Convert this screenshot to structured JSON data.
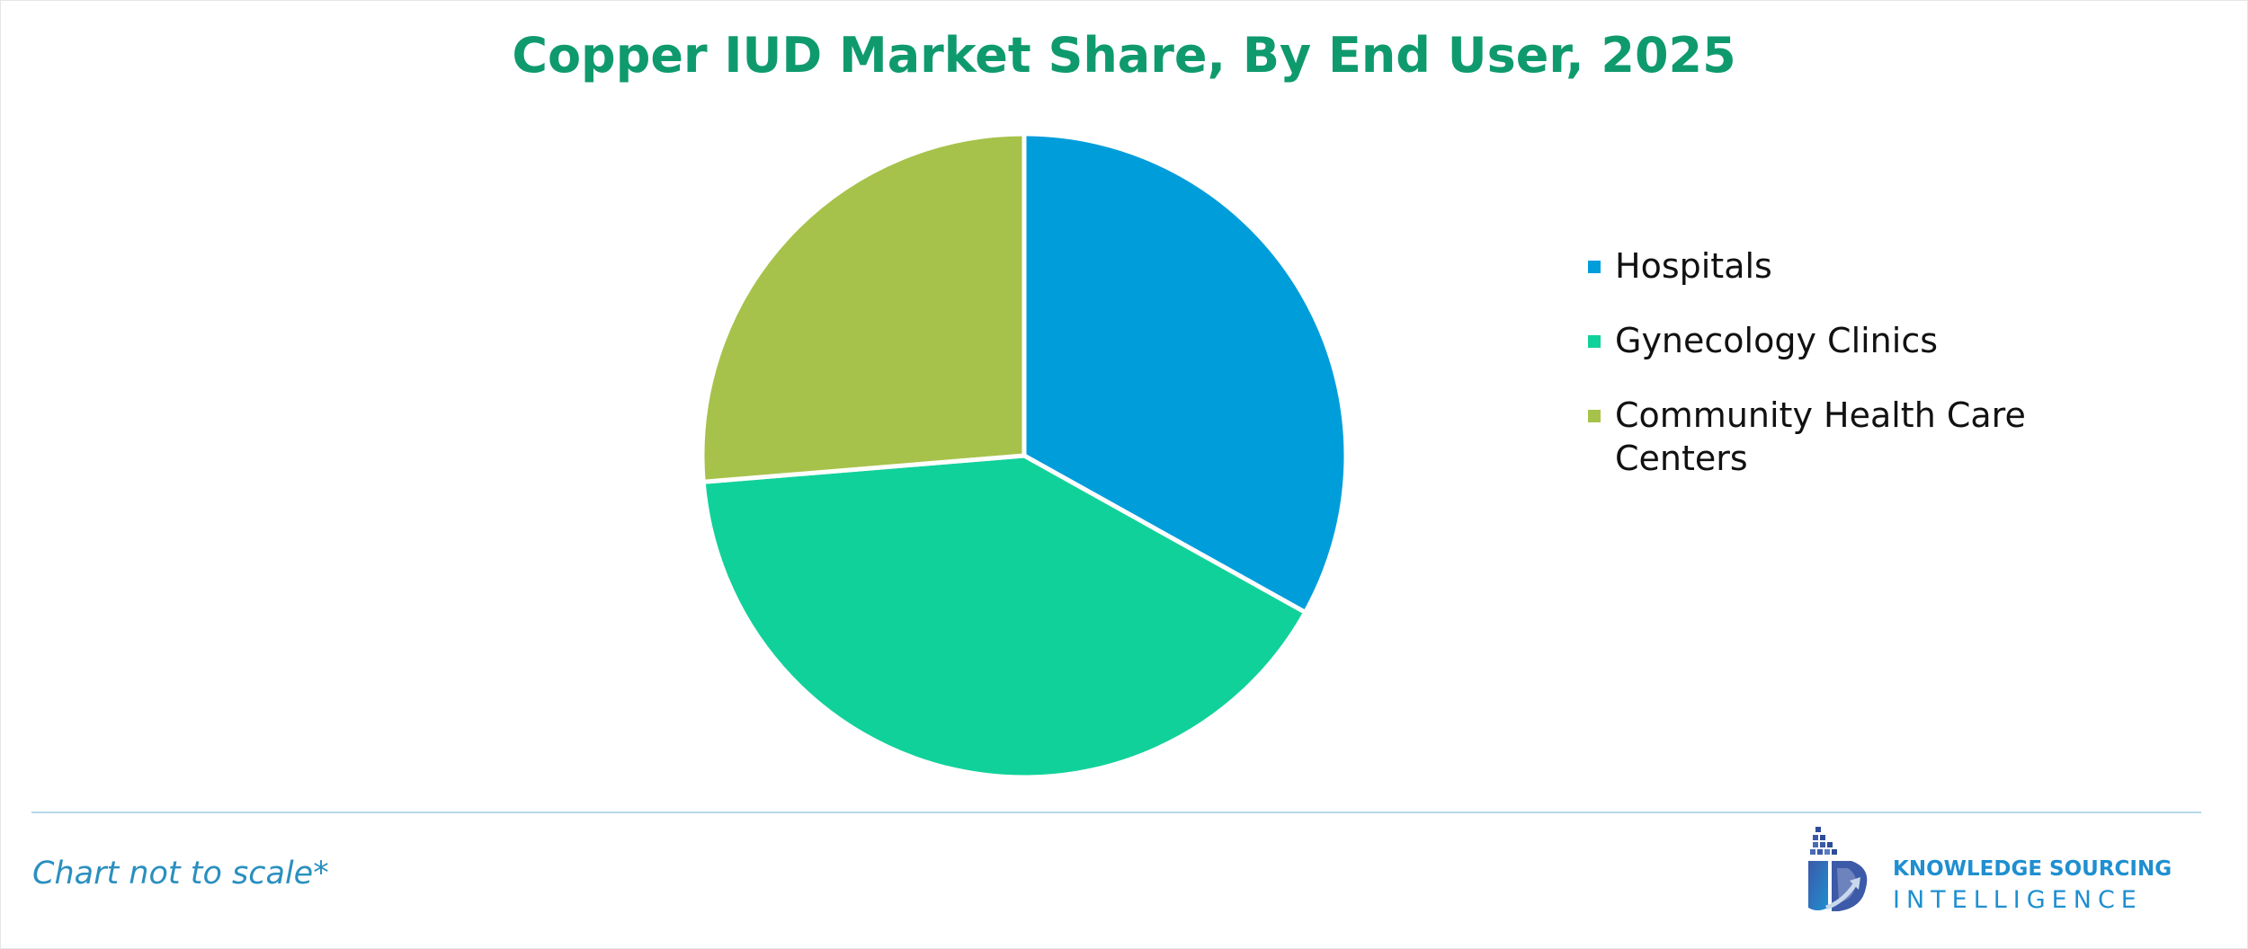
{
  "chart_data": {
    "type": "pie",
    "title": "Copper IUD Market Share, By End User, 2025",
    "categories": [
      "Hospitals",
      "Gynecology Clinics",
      "Community Health Care Centers"
    ],
    "values": [
      33.1,
      40.6,
      26.3
    ],
    "colors": [
      "#009ddb",
      "#11d19a",
      "#a6c24a"
    ],
    "start_angle_deg": 0,
    "direction": "clockwise",
    "legend_position": "right",
    "labels_shown": false
  },
  "footnote": "Chart not to scale*",
  "logo": {
    "line1": "KNOWLEDGE SOURCING",
    "line2": "INTELLIGENCE",
    "color": "#1f8fd0"
  },
  "colors": {
    "title": "#0f9a6e",
    "divider": "#b5d9ea",
    "footnote": "#2a8fbf"
  }
}
